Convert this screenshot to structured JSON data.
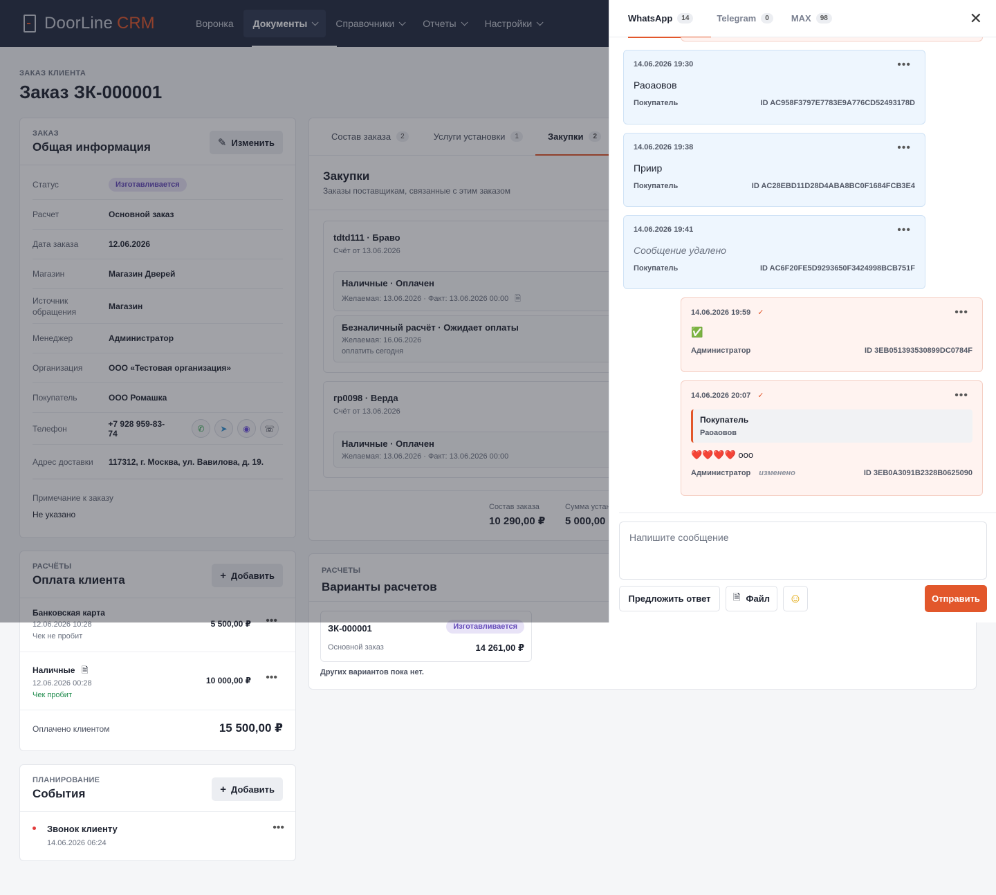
{
  "brand": {
    "name": "DoorLine",
    "accent": "CRM"
  },
  "nav": [
    {
      "label": "Воронка",
      "dropdown": false,
      "active": false
    },
    {
      "label": "Документы",
      "dropdown": true,
      "active": true
    },
    {
      "label": "Справочники",
      "dropdown": true,
      "active": false
    },
    {
      "label": "Отчеты",
      "dropdown": true,
      "active": false
    },
    {
      "label": "Настройки",
      "dropdown": true,
      "active": false
    }
  ],
  "page": {
    "crumb": "Заказ клиента",
    "title": "Заказ ЗК-000001"
  },
  "general": {
    "kicker": "Заказ",
    "title": "Общая информация",
    "edit_label": "Изменить",
    "rows": [
      {
        "label": "Статус",
        "value": "Изготавливается"
      },
      {
        "label": "Расчет",
        "value": "Основной заказ"
      },
      {
        "label": "Дата заказа",
        "value": "12.06.2026"
      },
      {
        "label": "Магазин",
        "value": "Магазин Дверей"
      },
      {
        "label": "Источник обращения",
        "value": "Магазин"
      },
      {
        "label": "Менеджер",
        "value": "Администратор"
      },
      {
        "label": "Организация",
        "value": "ООО «Тестовая организация»"
      },
      {
        "label": "Покупатель",
        "value": "ООО Ромашка"
      },
      {
        "label": "Телефон",
        "value": "+7 928 959-83-74"
      },
      {
        "label": "Адрес доставки",
        "value": "117312, г. Москва, ул. Вавилова, д. 19."
      }
    ],
    "note_label": "Примечание к заказу",
    "note_value": "Не указано"
  },
  "order_tabs": [
    {
      "label": "Состав заказа",
      "count": "2"
    },
    {
      "label": "Услуги установки",
      "count": "1"
    },
    {
      "label": "Закупки",
      "count": "2"
    }
  ],
  "purchases": {
    "title": "Закупки",
    "subtitle": "Заказы поставщикам, связанные с этим заказом",
    "suppliers": [
      {
        "name": "tdtd111 · Браво",
        "invoice": "Счёт от 13.06.2026",
        "payments": [
          {
            "title": "Наличные · Оплачен",
            "line": "Желаемая: 13.06.2026 · Факт: 13.06.2026 00:00",
            "extra": ""
          },
          {
            "title": "Безналичный расчёт · Ожидает оплаты",
            "line": "Желаемая: 16.06.2026",
            "extra": "оплатить сегодня"
          }
        ]
      },
      {
        "name": "гр0098 · Верда",
        "invoice": "Счёт от 13.06.2026",
        "payments": [
          {
            "title": "Наличные · Оплачен",
            "line": "Желаемая: 13.06.2026 · Факт: 13.06.2026 00:00",
            "extra": ""
          }
        ]
      }
    ],
    "totals": [
      {
        "label": "Состав заказа",
        "value": "10 290,00 ₽"
      },
      {
        "label": "Сумма устан",
        "value": "5 000,00 ₽"
      }
    ]
  },
  "payments": {
    "kicker": "Расчёты",
    "title": "Оплата клиента",
    "add_label": "Добавить",
    "items": [
      {
        "method": "Банковская карта",
        "date": "12.06.2026 10:28",
        "status": "Чек не пробит",
        "amount": "5 500,00 ₽"
      },
      {
        "method": "Наличные",
        "date": "12.06.2026 00:28",
        "status": "Чек пробит",
        "amount": "10 000,00 ₽"
      }
    ],
    "total_label": "Оплачено клиентом",
    "total_value": "15 500,00 ₽"
  },
  "events": {
    "kicker": "Планирование",
    "title": "События",
    "add_label": "Добавить",
    "items": [
      {
        "title": "Звонок клиенту",
        "date": "14.06.2026 06:24"
      }
    ]
  },
  "variants": {
    "kicker": "Расчеты",
    "title": "Варианты расчетов",
    "card": {
      "code": "ЗК-000001",
      "status": "Изготавливается",
      "type": "Основной заказ",
      "amount": "14 261,00 ₽"
    },
    "empty": "Других вариантов пока нет."
  },
  "chat": {
    "tabs": [
      {
        "label": "WhatsApp",
        "count": "14"
      },
      {
        "label": "Telegram",
        "count": "0"
      },
      {
        "label": "MAX",
        "count": "98"
      }
    ],
    "messages": [
      {
        "time": "14.06.2026 19:30",
        "text": "Раоаовов",
        "author": "Покупатель",
        "id": "ID AC958F3797E7783E9A776CD52493178D"
      },
      {
        "time": "14.06.2026 19:38",
        "text": "Приир",
        "author": "Покупатель",
        "id": "ID AC28EBD11D28D4ABA8BC0F1684FCB3E4"
      },
      {
        "time": "14.06.2026 19:41",
        "text": "Сообщение удалено",
        "author": "Покупатель",
        "id": "ID AC6F20FE5D9293650F3424998BCB751F"
      },
      {
        "time": "14.06.2026 19:59",
        "text": "✅",
        "author": "Администратор",
        "id": "ID 3EB051393530899DC0784F"
      },
      {
        "time": "14.06.2026 20:07",
        "quote_author": "Покупатель",
        "quote_text": "Раоаовов",
        "text": "❤️❤️❤️❤️ ооо",
        "author": "Администратор",
        "edited": "изменено",
        "id": "ID 3EB0A3091B2328B0625090"
      }
    ],
    "placeholder": "Напишите сообщение",
    "suggest_label": "Предложить ответ",
    "file_label": "Файл",
    "send_label": "Отправить"
  }
}
